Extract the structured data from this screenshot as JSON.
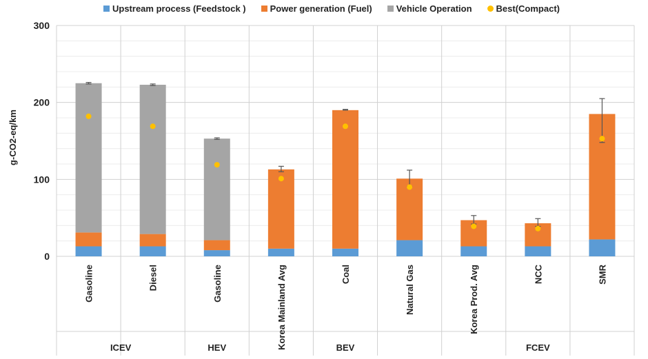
{
  "legend": [
    {
      "label": "Upstream process (Feedstock )",
      "color": "#5B9BD5",
      "kind": "square"
    },
    {
      "label": "Power generation (Fuel)",
      "color": "#ED7D31",
      "kind": "square"
    },
    {
      "label": "Vehicle Operation",
      "color": "#A5A5A5",
      "kind": "square"
    },
    {
      "label": "Best(Compact)",
      "color": "#FFC000",
      "kind": "dot"
    }
  ],
  "chart_data": {
    "type": "bar",
    "stacked": true,
    "ylabel": "g-CO2-eq/km",
    "ylim": [
      0,
      300
    ],
    "yticks": [
      0,
      100,
      200,
      300
    ],
    "grid": true,
    "legend_position": "top",
    "categories": [
      "Gasoline",
      "Diesel",
      "Gasoline",
      "Korea Mainland Avg",
      "Coal",
      "Natural Gas",
      "Korea Prod. Avg",
      "NCC",
      "SMR"
    ],
    "groups": [
      {
        "label": "ICEV",
        "span": 2
      },
      {
        "label": "HEV",
        "span": 1
      },
      {
        "label": "BEV",
        "span": 3
      },
      {
        "label": "FCEV",
        "span": 3
      }
    ],
    "series": [
      {
        "name": "Upstream process (Feedstock )",
        "color": "#5B9BD5",
        "values": [
          13,
          13,
          8,
          10,
          10,
          21,
          13,
          13,
          22
        ]
      },
      {
        "name": "Power generation (Fuel)",
        "color": "#ED7D31",
        "values": [
          18,
          16,
          13,
          103,
          180,
          80,
          34,
          30,
          163
        ]
      },
      {
        "name": "Vehicle Operation",
        "color": "#A5A5A5",
        "values": [
          194,
          194,
          132,
          0,
          0,
          0,
          0,
          0,
          0
        ]
      }
    ],
    "error_bars": [
      {
        "low": 224,
        "high": 226
      },
      {
        "low": 222,
        "high": 224
      },
      {
        "low": 152,
        "high": 154
      },
      {
        "low": 110,
        "high": 117
      },
      {
        "low": 190,
        "high": 191
      },
      {
        "low": 91,
        "high": 112
      },
      {
        "low": 42,
        "high": 53
      },
      {
        "low": 39,
        "high": 49
      },
      {
        "low": 148,
        "high": 205
      }
    ],
    "best_compact": {
      "name": "Best(Compact)",
      "color": "#FFC000",
      "values": [
        182,
        169,
        119,
        101,
        169,
        90,
        39,
        36,
        153
      ]
    }
  }
}
